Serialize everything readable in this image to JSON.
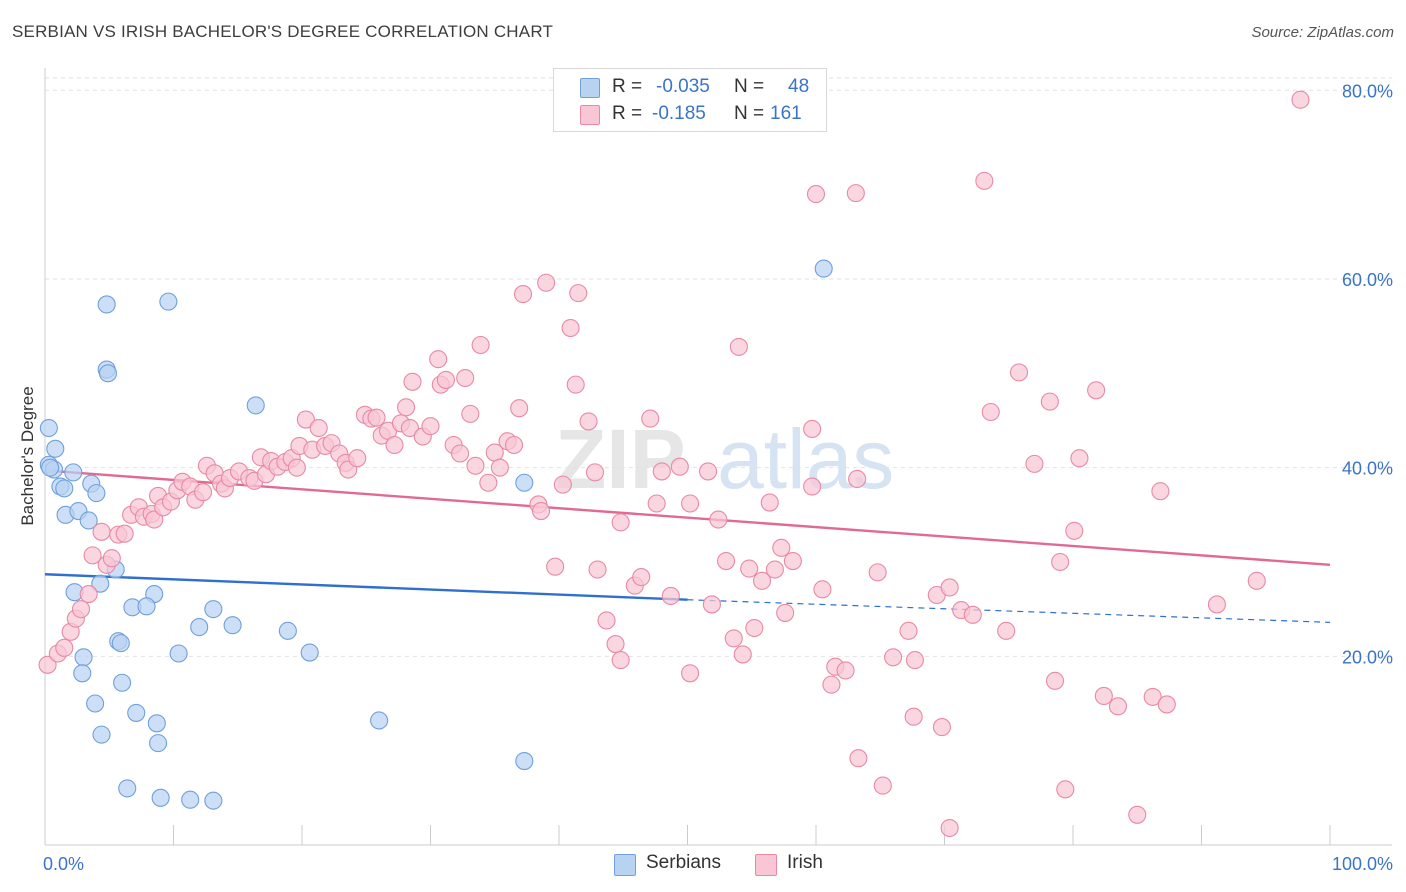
{
  "header": {
    "title": "SERBIAN VS IRISH BACHELOR'S DEGREE CORRELATION CHART",
    "source": "Source: ZipAtlas.com"
  },
  "watermark": {
    "zip": "ZIP",
    "atlas": "atlas"
  },
  "legend": {
    "rows": [
      {
        "r_label": "R =",
        "r_value": "-0.035",
        "n_label": "N =",
        "n_value": "48",
        "color": "#b8d3f2",
        "border": "#6fa0dc"
      },
      {
        "r_label": "R =",
        "r_value": "-0.185",
        "n_label": "N =",
        "n_value": "161",
        "color": "#f8c6d5",
        "border": "#e889a6"
      }
    ]
  },
  "bottom_legend": [
    {
      "label": "Serbians",
      "color": "#b8d3f2",
      "border": "#6fa0dc"
    },
    {
      "label": "Irish",
      "color": "#f8c6d5",
      "border": "#e889a6"
    }
  ],
  "chart_data": {
    "type": "scatter",
    "title": "SERBIAN VS IRISH BACHELOR'S DEGREE CORRELATION CHART",
    "xlabel": "",
    "ylabel": "Bachelor's Degree",
    "xlim": [
      0,
      100
    ],
    "ylim": [
      0,
      83
    ],
    "x_tick_labels": [
      "0.0%",
      "100.0%"
    ],
    "y_ticks": [
      20,
      40,
      60,
      80
    ],
    "y_tick_labels": [
      "20.0%",
      "40.0%",
      "60.0%",
      "80.0%"
    ],
    "grid": true,
    "legend_position": "top-center",
    "series": [
      {
        "name": "Serbians",
        "color": "#6fa0dc",
        "fill": "#b8d3f2",
        "line_color": "#2f6fcf",
        "trend": {
          "x0": 0,
          "y0": 28.7,
          "x1": 50,
          "y1": 26.0,
          "dashed_to_x": 100,
          "dashed_to_y": 23.6
        },
        "points": [
          [
            0.3,
            44.2
          ],
          [
            0.8,
            42.0
          ],
          [
            0.3,
            40.3
          ],
          [
            0.7,
            39.8
          ],
          [
            1.2,
            38.0
          ],
          [
            1.5,
            37.8
          ],
          [
            2.2,
            39.5
          ],
          [
            3.6,
            38.3
          ],
          [
            4.0,
            37.3
          ],
          [
            1.6,
            35.0
          ],
          [
            2.6,
            35.4
          ],
          [
            3.4,
            34.4
          ],
          [
            4.8,
            57.3
          ],
          [
            9.6,
            57.6
          ],
          [
            4.8,
            50.4
          ],
          [
            4.9,
            50.0
          ],
          [
            16.4,
            46.6
          ],
          [
            60.6,
            61.1
          ],
          [
            37.3,
            38.4
          ],
          [
            5.5,
            29.2
          ],
          [
            2.3,
            26.8
          ],
          [
            4.3,
            27.7
          ],
          [
            8.5,
            26.6
          ],
          [
            6.8,
            25.2
          ],
          [
            7.9,
            25.3
          ],
          [
            13.1,
            25.0
          ],
          [
            12.0,
            23.1
          ],
          [
            14.6,
            23.3
          ],
          [
            18.9,
            22.7
          ],
          [
            5.7,
            21.6
          ],
          [
            5.9,
            21.4
          ],
          [
            10.4,
            20.3
          ],
          [
            20.6,
            20.4
          ],
          [
            3.0,
            19.9
          ],
          [
            2.9,
            18.2
          ],
          [
            6.0,
            17.2
          ],
          [
            3.9,
            15.0
          ],
          [
            7.1,
            14.0
          ],
          [
            8.7,
            12.9
          ],
          [
            26.0,
            13.2
          ],
          [
            4.4,
            11.7
          ],
          [
            8.8,
            10.8
          ],
          [
            37.3,
            8.9
          ],
          [
            6.4,
            6.0
          ],
          [
            9.0,
            5.0
          ],
          [
            11.3,
            4.8
          ],
          [
            13.1,
            4.7
          ],
          [
            0.4,
            40.0
          ]
        ]
      },
      {
        "name": "Irish",
        "color": "#e889a6",
        "fill": "#f8c6d5",
        "line_color": "#e06a93",
        "trend": {
          "x0": 0,
          "y0": 39.7,
          "x1": 100,
          "y1": 29.7
        },
        "points": [
          [
            0.2,
            19.1
          ],
          [
            1.0,
            20.3
          ],
          [
            1.5,
            20.9
          ],
          [
            2.0,
            22.6
          ],
          [
            2.4,
            24.0
          ],
          [
            2.8,
            25.0
          ],
          [
            3.4,
            26.6
          ],
          [
            3.7,
            30.7
          ],
          [
            4.4,
            33.2
          ],
          [
            4.8,
            29.7
          ],
          [
            5.2,
            30.4
          ],
          [
            5.7,
            32.9
          ],
          [
            6.2,
            33.0
          ],
          [
            6.7,
            35.0
          ],
          [
            7.3,
            35.8
          ],
          [
            7.7,
            34.8
          ],
          [
            8.3,
            35.1
          ],
          [
            8.5,
            34.5
          ],
          [
            8.8,
            37.0
          ],
          [
            9.2,
            35.8
          ],
          [
            9.8,
            36.4
          ],
          [
            10.3,
            37.6
          ],
          [
            10.7,
            38.5
          ],
          [
            11.3,
            38.0
          ],
          [
            11.7,
            36.6
          ],
          [
            12.3,
            37.4
          ],
          [
            12.6,
            40.2
          ],
          [
            13.2,
            39.4
          ],
          [
            13.7,
            38.3
          ],
          [
            14.0,
            37.8
          ],
          [
            14.4,
            38.9
          ],
          [
            15.1,
            39.6
          ],
          [
            15.9,
            38.9
          ],
          [
            16.3,
            38.6
          ],
          [
            16.8,
            41.1
          ],
          [
            17.2,
            39.3
          ],
          [
            17.6,
            40.7
          ],
          [
            18.1,
            40.1
          ],
          [
            18.7,
            40.6
          ],
          [
            19.2,
            41.0
          ],
          [
            19.6,
            40.0
          ],
          [
            19.8,
            42.3
          ],
          [
            20.3,
            45.1
          ],
          [
            20.8,
            41.9
          ],
          [
            21.3,
            44.2
          ],
          [
            21.8,
            42.3
          ],
          [
            22.3,
            42.6
          ],
          [
            22.9,
            41.5
          ],
          [
            23.4,
            40.5
          ],
          [
            23.6,
            39.8
          ],
          [
            24.3,
            41.0
          ],
          [
            24.9,
            45.6
          ],
          [
            25.4,
            45.2
          ],
          [
            25.8,
            45.3
          ],
          [
            26.2,
            43.4
          ],
          [
            26.7,
            43.9
          ],
          [
            27.2,
            42.4
          ],
          [
            27.7,
            44.7
          ],
          [
            28.1,
            46.4
          ],
          [
            28.6,
            49.1
          ],
          [
            28.4,
            44.2
          ],
          [
            29.4,
            43.3
          ],
          [
            30.0,
            44.4
          ],
          [
            30.6,
            51.5
          ],
          [
            30.8,
            48.8
          ],
          [
            31.2,
            49.3
          ],
          [
            31.8,
            42.4
          ],
          [
            32.3,
            41.5
          ],
          [
            32.7,
            49.5
          ],
          [
            33.1,
            45.7
          ],
          [
            33.5,
            40.2
          ],
          [
            33.9,
            53.0
          ],
          [
            34.5,
            38.4
          ],
          [
            35.0,
            41.6
          ],
          [
            35.4,
            40.0
          ],
          [
            36.0,
            42.8
          ],
          [
            36.5,
            42.4
          ],
          [
            36.9,
            46.3
          ],
          [
            37.2,
            58.4
          ],
          [
            38.4,
            36.1
          ],
          [
            38.6,
            35.4
          ],
          [
            39.0,
            59.6
          ],
          [
            39.7,
            29.5
          ],
          [
            40.3,
            38.2
          ],
          [
            40.9,
            54.8
          ],
          [
            41.3,
            48.8
          ],
          [
            41.5,
            58.5
          ],
          [
            42.3,
            44.9
          ],
          [
            42.8,
            39.5
          ],
          [
            43.0,
            29.2
          ],
          [
            43.7,
            23.8
          ],
          [
            44.4,
            21.3
          ],
          [
            44.8,
            34.2
          ],
          [
            44.8,
            19.6
          ],
          [
            45.9,
            27.5
          ],
          [
            46.4,
            28.4
          ],
          [
            47.1,
            45.2
          ],
          [
            47.6,
            36.2
          ],
          [
            48.0,
            39.6
          ],
          [
            48.7,
            26.4
          ],
          [
            49.4,
            40.1
          ],
          [
            50.2,
            36.2
          ],
          [
            50.2,
            18.2
          ],
          [
            51.6,
            39.6
          ],
          [
            51.9,
            25.5
          ],
          [
            52.4,
            34.5
          ],
          [
            53.0,
            30.1
          ],
          [
            53.6,
            21.9
          ],
          [
            54.0,
            52.8
          ],
          [
            54.3,
            20.2
          ],
          [
            54.8,
            29.3
          ],
          [
            55.2,
            23.0
          ],
          [
            55.8,
            28.0
          ],
          [
            56.4,
            36.3
          ],
          [
            56.8,
            29.2
          ],
          [
            57.3,
            31.5
          ],
          [
            57.6,
            24.6
          ],
          [
            58.2,
            30.1
          ],
          [
            59.7,
            44.1
          ],
          [
            59.7,
            38.0
          ],
          [
            60.0,
            69.0
          ],
          [
            60.5,
            27.1
          ],
          [
            61.2,
            17.0
          ],
          [
            61.5,
            18.9
          ],
          [
            62.3,
            18.5
          ],
          [
            63.1,
            69.1
          ],
          [
            63.2,
            38.8
          ],
          [
            63.3,
            9.2
          ],
          [
            64.8,
            28.9
          ],
          [
            65.2,
            6.3
          ],
          [
            66.0,
            19.9
          ],
          [
            67.2,
            22.7
          ],
          [
            67.6,
            13.6
          ],
          [
            67.7,
            19.6
          ],
          [
            69.4,
            26.5
          ],
          [
            69.8,
            12.5
          ],
          [
            70.4,
            27.3
          ],
          [
            70.4,
            1.8
          ],
          [
            71.3,
            24.9
          ],
          [
            72.2,
            24.4
          ],
          [
            73.1,
            70.4
          ],
          [
            73.6,
            45.9
          ],
          [
            74.8,
            22.7
          ],
          [
            75.8,
            50.1
          ],
          [
            77.0,
            40.4
          ],
          [
            78.2,
            47.0
          ],
          [
            78.6,
            17.4
          ],
          [
            79.0,
            30.0
          ],
          [
            79.4,
            5.9
          ],
          [
            80.1,
            33.3
          ],
          [
            80.5,
            41.0
          ],
          [
            81.8,
            48.2
          ],
          [
            82.4,
            15.8
          ],
          [
            83.5,
            14.7
          ],
          [
            85.0,
            3.2
          ],
          [
            86.2,
            15.7
          ],
          [
            86.8,
            37.5
          ],
          [
            87.3,
            14.9
          ],
          [
            91.2,
            25.5
          ],
          [
            94.3,
            28.0
          ],
          [
            97.7,
            79.0
          ]
        ]
      }
    ]
  }
}
